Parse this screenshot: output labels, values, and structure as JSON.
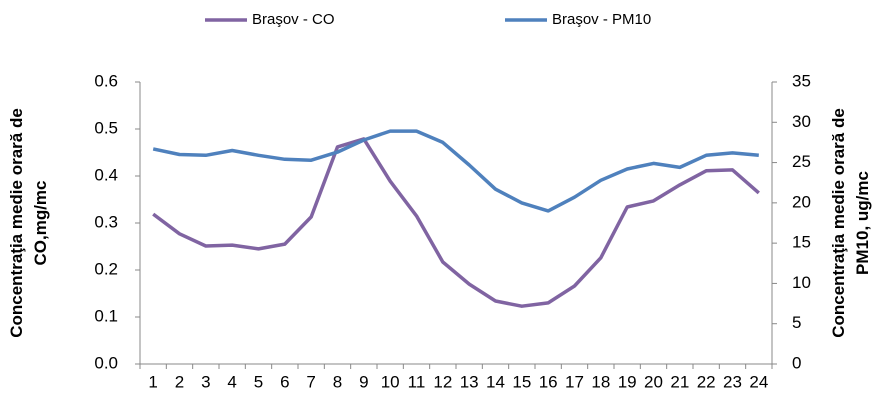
{
  "chart_data": {
    "type": "line",
    "categories": [
      "1",
      "2",
      "3",
      "4",
      "5",
      "6",
      "7",
      "8",
      "9",
      "10",
      "11",
      "12",
      "13",
      "14",
      "15",
      "16",
      "17",
      "18",
      "19",
      "20",
      "21",
      "22",
      "23",
      "24"
    ],
    "y_label": [
      "Concentraţia medie orară de",
      "CO,mg/mc"
    ],
    "y2_label": [
      "Concentraţia medie orară de",
      "PM10, ug/mc"
    ],
    "ylim": [
      0,
      0.6
    ],
    "yticks": [
      {
        "value": 0,
        "label": "0.0"
      },
      0.1,
      0.2,
      0.3,
      0.4,
      0.5,
      0.6
    ],
    "y2lim": [
      0,
      35
    ],
    "y2ticks": [
      0,
      5,
      10,
      15,
      20,
      25,
      30,
      35
    ],
    "legend": "top",
    "series": [
      {
        "name": "Braşov - CO",
        "color": "#8064a2",
        "values": [
          0.319,
          0.277,
          0.251,
          0.253,
          0.245,
          0.255,
          0.313,
          0.462,
          0.479,
          0.389,
          0.315,
          0.217,
          0.17,
          0.134,
          0.123,
          0.13,
          0.166,
          0.226,
          0.334,
          0.347,
          0.381,
          0.411,
          0.413,
          0.364
        ]
      },
      {
        "name": "Braşov - PM10",
        "color": "#4f81bd",
        "axis": "y2",
        "values": [
          26.7,
          26.0,
          25.9,
          26.5,
          25.9,
          25.4,
          25.3,
          26.3,
          27.8,
          28.9,
          28.9,
          27.5,
          24.7,
          21.7,
          20.0,
          19.0,
          20.7,
          22.8,
          24.2,
          24.9,
          24.4,
          25.9,
          26.2,
          25.9
        ]
      }
    ]
  }
}
